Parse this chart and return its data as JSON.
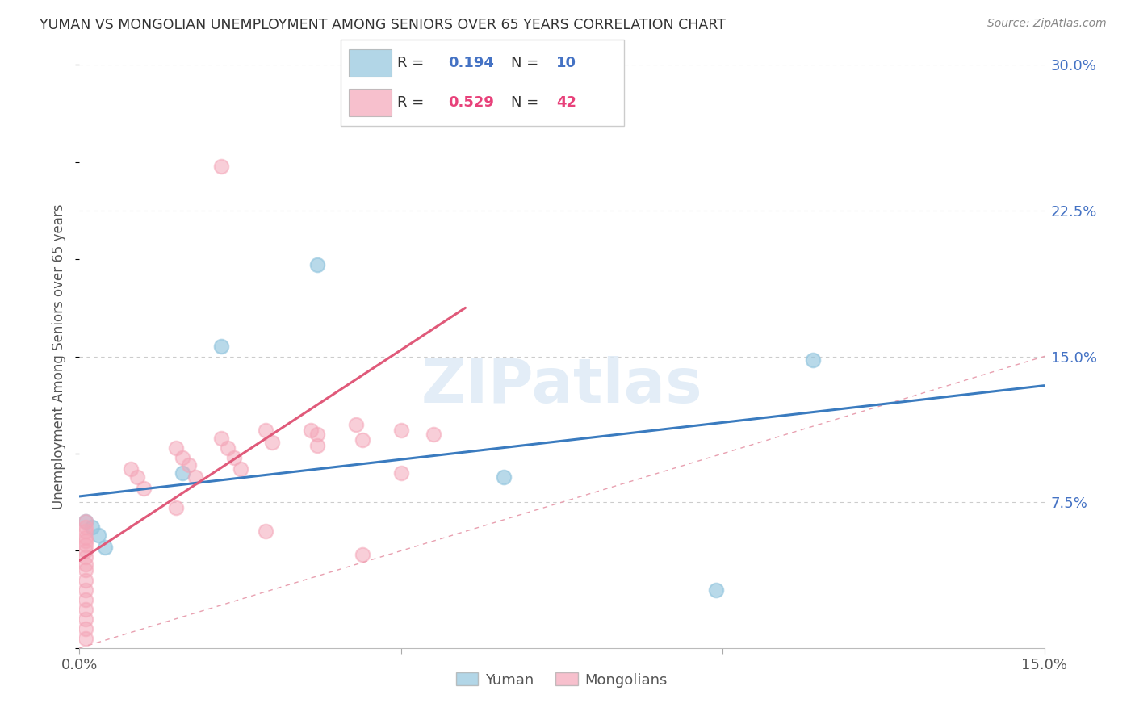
{
  "title": "YUMAN VS MONGOLIAN UNEMPLOYMENT AMONG SENIORS OVER 65 YEARS CORRELATION CHART",
  "source": "Source: ZipAtlas.com",
  "ylabel": "Unemployment Among Seniors over 65 years",
  "xlim": [
    0.0,
    0.15
  ],
  "ylim": [
    0.0,
    0.3
  ],
  "yuman_color": "#92c5de",
  "mongolian_color": "#f4a6b8",
  "yuman_line_color": "#3a7bbf",
  "mongolian_line_color": "#e05a7a",
  "diagonal_color": "#e8a0b0",
  "background_color": "#ffffff",
  "grid_color": "#cccccc",
  "legend_R_yuman": "0.194",
  "legend_N_yuman": "10",
  "legend_R_mongolian": "0.529",
  "legend_N_mongolian": "42",
  "yuman_x": [
    0.001,
    0.002,
    0.003,
    0.004,
    0.016,
    0.022,
    0.037,
    0.066,
    0.099,
    0.114
  ],
  "yuman_y": [
    0.065,
    0.062,
    0.058,
    0.052,
    0.09,
    0.155,
    0.197,
    0.088,
    0.03,
    0.148
  ],
  "mongolian_x": [
    0.001,
    0.001,
    0.001,
    0.001,
    0.001,
    0.001,
    0.001,
    0.001,
    0.001,
    0.001,
    0.001,
    0.001,
    0.001,
    0.001,
    0.001,
    0.001,
    0.001,
    0.008,
    0.009,
    0.01,
    0.015,
    0.016,
    0.017,
    0.018,
    0.022,
    0.023,
    0.024,
    0.025,
    0.029,
    0.03,
    0.036,
    0.037,
    0.043,
    0.044,
    0.05,
    0.055,
    0.022,
    0.029,
    0.037,
    0.044,
    0.05,
    0.015
  ],
  "mongolian_y": [
    0.065,
    0.062,
    0.06,
    0.057,
    0.055,
    0.053,
    0.05,
    0.047,
    0.043,
    0.04,
    0.035,
    0.03,
    0.025,
    0.02,
    0.015,
    0.01,
    0.005,
    0.092,
    0.088,
    0.082,
    0.103,
    0.098,
    0.094,
    0.088,
    0.108,
    0.103,
    0.098,
    0.092,
    0.112,
    0.106,
    0.112,
    0.104,
    0.115,
    0.107,
    0.112,
    0.11,
    0.248,
    0.06,
    0.11,
    0.048,
    0.09,
    0.072
  ],
  "yuman_line_x0": 0.0,
  "yuman_line_y0": 0.078,
  "yuman_line_x1": 0.15,
  "yuman_line_y1": 0.135,
  "mongolian_line_x0": 0.0,
  "mongolian_line_y0": 0.045,
  "mongolian_line_x1": 0.06,
  "mongolian_line_y1": 0.175
}
